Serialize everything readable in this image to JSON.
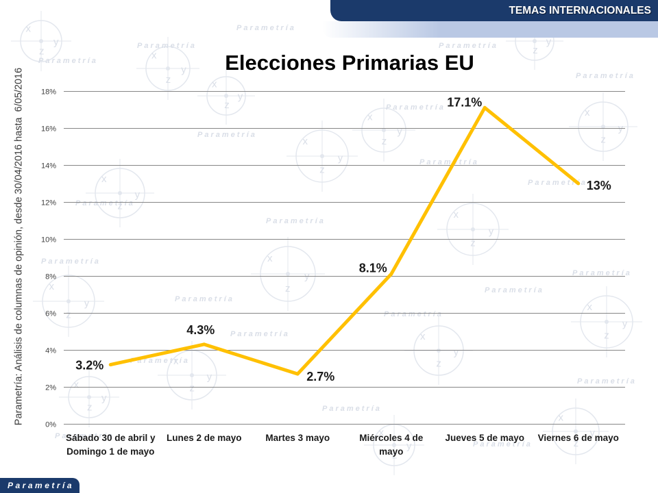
{
  "header": {
    "section_label": "TEMAS INTERNACIONALES"
  },
  "source_note": "Parametría: Análisis de columnas de opinión, desde 30/04/2016 hasta  6/05/2016",
  "footer": {
    "logo_text": "Parametría"
  },
  "watermark": {
    "text": "Parametría",
    "letters": [
      "x",
      "y",
      "z"
    ]
  },
  "colors": {
    "navy": "#1b3a6b",
    "banner_light": "#b9c8e4",
    "line": "#FFC000",
    "grid": "#868686",
    "watermark": "#e3e7ee"
  },
  "chart_data": {
    "type": "line",
    "title": "Elecciones Primarias EU",
    "xlabel": "",
    "ylabel": "",
    "categories": [
      "Sábado 30 de abril y Domingo 1 de mayo",
      "Lunes 2 de mayo",
      "Martes 3 mayo",
      "Miércoles 4 de mayo",
      "Jueves 5 de mayo",
      "Viernes 6 de mayo"
    ],
    "series": [
      {
        "values": [
          3.2,
          4.3,
          2.7,
          8.1,
          17.1,
          13
        ]
      }
    ],
    "data_labels": [
      "3.2%",
      "4.3%",
      "2.7%",
      "8.1%",
      "17.1%",
      "13%"
    ],
    "y_ticks": [
      "0%",
      "2%",
      "4%",
      "6%",
      "8%",
      "10%",
      "12%",
      "14%",
      "16%",
      "18%"
    ],
    "ylim": [
      0,
      18
    ],
    "y_step": 2,
    "grid": true
  }
}
